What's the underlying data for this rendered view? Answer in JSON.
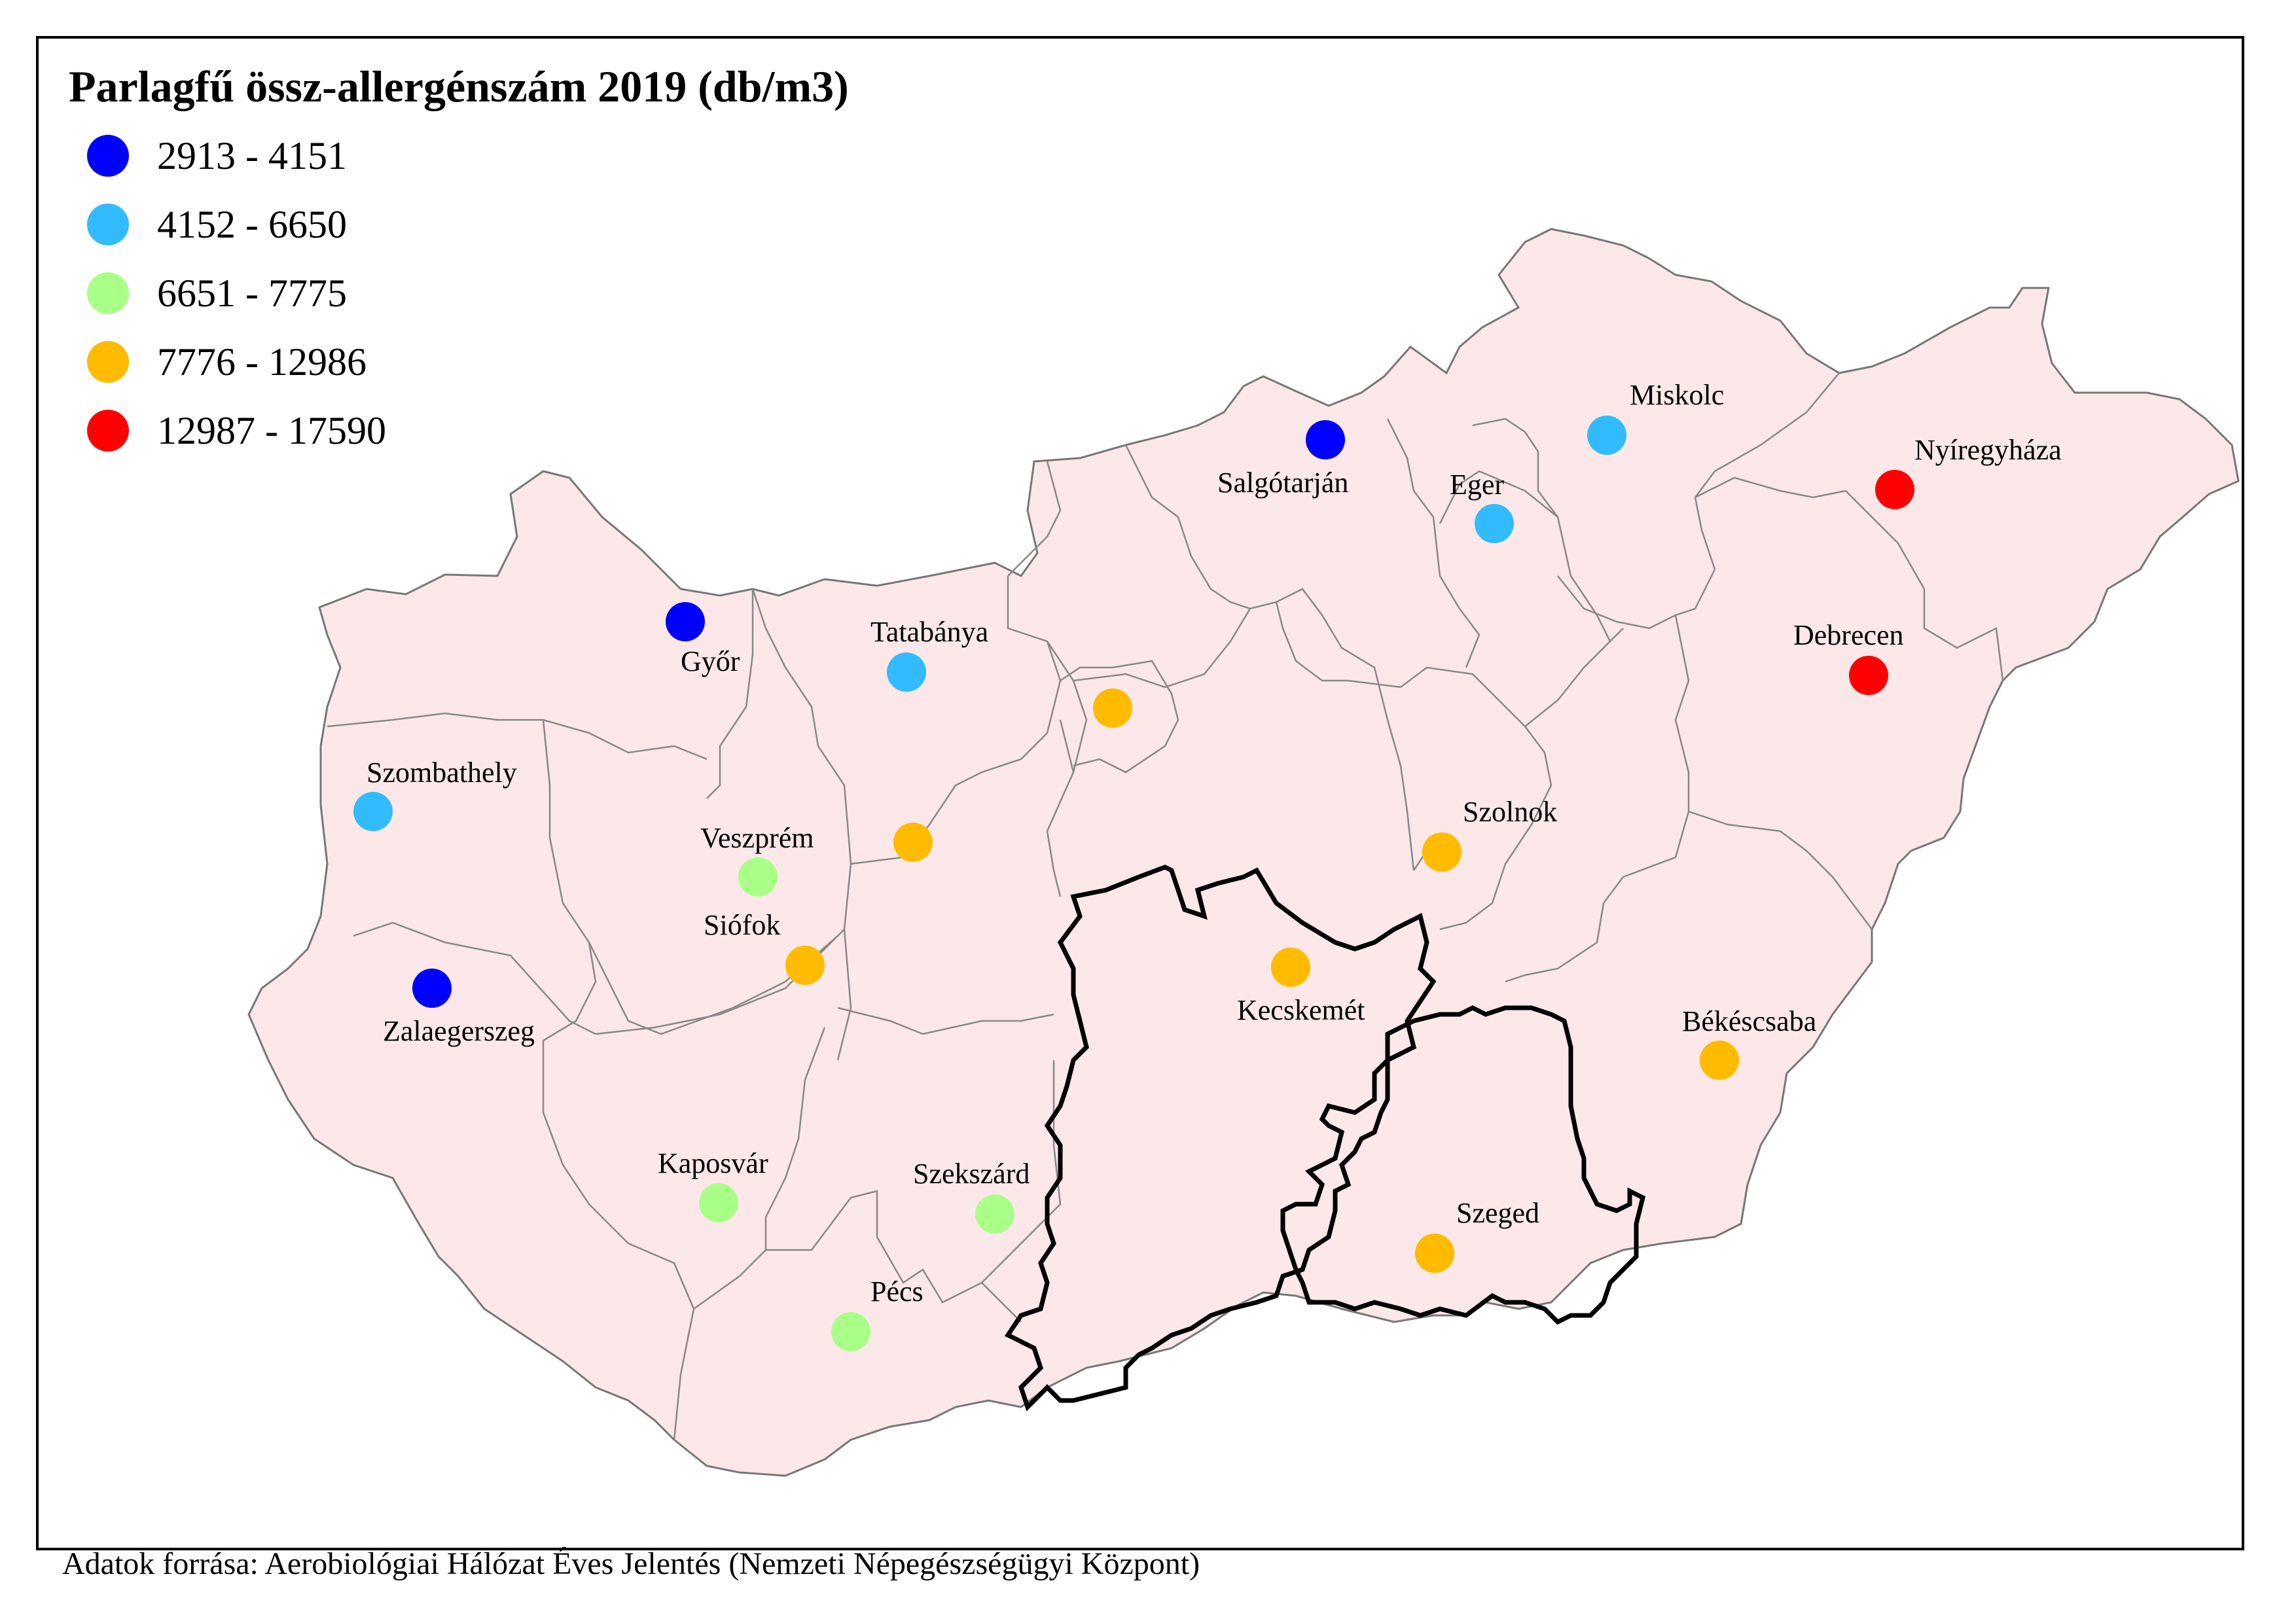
{
  "map": {
    "legend": {
      "title": "Parlagfű össz-allergénszám 2019 (db/m3)",
      "classes": [
        {
          "label": "2913 - 4151",
          "color": "#0000ff"
        },
        {
          "label": "4152 - 6650",
          "color": "#33bbff"
        },
        {
          "label": "6651 - 7775",
          "color": "#aaff88"
        },
        {
          "label": "7776 - 12986",
          "color": "#ffbb00"
        },
        {
          "label": "12987 - 17590",
          "color": "#ff0000"
        }
      ]
    },
    "source": "Adatok forrása: Aerobiológiai Hálózat Éves Jelentés (Nemzeti Népegészségügyi Központ)",
    "region_fill": "#fce8e8",
    "stations": [
      {
        "name": "Salgótarján",
        "class": 0
      },
      {
        "name": "Miskolc",
        "class": 1
      },
      {
        "name": "Nyíregyháza",
        "class": 4
      },
      {
        "name": "Eger",
        "class": 1
      },
      {
        "name": "Győr",
        "class": 0
      },
      {
        "name": "Tatabánya",
        "class": 1
      },
      {
        "name": "Debrecen",
        "class": 4
      },
      {
        "name": "",
        "class": 3
      },
      {
        "name": "Szombathely",
        "class": 1
      },
      {
        "name": "Szolnok",
        "class": 3
      },
      {
        "name": "Veszprém",
        "class": 2
      },
      {
        "name": "",
        "class": 3
      },
      {
        "name": "Siófok",
        "class": 3
      },
      {
        "name": "Kecskemét",
        "class": 3
      },
      {
        "name": "Zalaegerszeg",
        "class": 0
      },
      {
        "name": "Békéscsaba",
        "class": 3
      },
      {
        "name": "Kaposvár",
        "class": 2
      },
      {
        "name": "Szekszárd",
        "class": 2
      },
      {
        "name": "Szeged",
        "class": 3
      },
      {
        "name": "Pécs",
        "class": 2
      }
    ]
  }
}
